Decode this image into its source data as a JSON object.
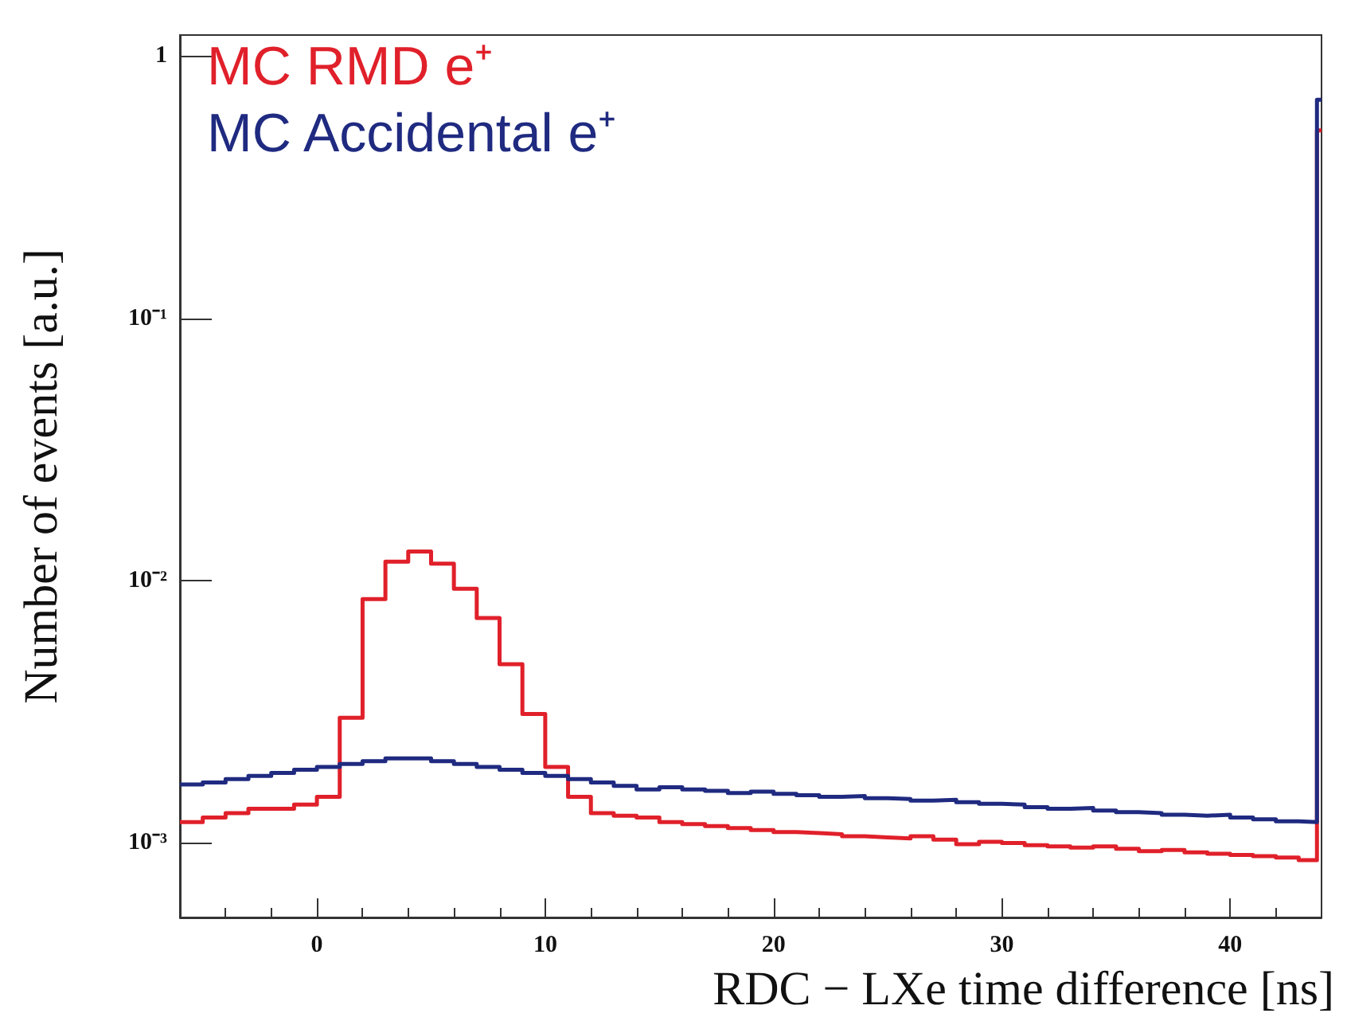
{
  "chart_data": {
    "type": "histogram",
    "xlabel": "RDC − LXe time difference [ns]",
    "ylabel": "Number of events [a.u.]",
    "log": "y",
    "legend": "top left",
    "xlim": [
      -6,
      44
    ],
    "xticks": [
      0,
      10,
      20,
      30,
      40
    ],
    "ylim": [
      0.00052,
      1.2
    ],
    "yticks": [
      {
        "value": 0.001,
        "label": "10⁻³"
      },
      {
        "value": 0.01,
        "label": "10⁻²"
      },
      {
        "value": 0.1,
        "label": "10⁻¹"
      },
      1
    ],
    "bins": [
      -6,
      -5,
      -4,
      -3,
      -2,
      -1,
      0,
      1,
      2,
      3,
      4,
      5,
      6,
      7,
      8,
      9,
      10,
      11,
      12,
      13,
      14,
      15,
      16,
      17,
      18,
      19,
      20,
      21,
      22,
      23,
      24,
      25,
      26,
      27,
      28,
      29,
      30,
      31,
      32,
      33,
      34,
      35,
      36,
      37,
      38,
      39,
      40,
      41,
      42,
      43,
      43.8,
      44
    ],
    "series": [
      {
        "name": "MC RMD e⁺",
        "color": "#e0202a",
        "values": [
          0.0012,
          0.00125,
          0.0013,
          0.00135,
          0.00135,
          0.0014,
          0.0015,
          0.003,
          0.0085,
          0.0118,
          0.0129,
          0.0116,
          0.0093,
          0.0072,
          0.0048,
          0.0031,
          0.00195,
          0.0015,
          0.0013,
          0.00127,
          0.00125,
          0.0012,
          0.00118,
          0.00116,
          0.00114,
          0.00112,
          0.0011,
          0.00109,
          0.00108,
          0.00106,
          0.00105,
          0.00104,
          0.00106,
          0.00103,
          0.00099,
          0.00101,
          0.001,
          0.00098,
          0.00097,
          0.00096,
          0.00097,
          0.00095,
          0.00093,
          0.00094,
          0.00092,
          0.00091,
          0.0009,
          0.00089,
          0.00088,
          0.00086,
          0.52
        ]
      },
      {
        "name": "MC Accidental e⁺",
        "color": "#1f2a80",
        "values": [
          0.00167,
          0.0017,
          0.00175,
          0.0018,
          0.00185,
          0.0019,
          0.00195,
          0.002,
          0.00205,
          0.0021,
          0.0021,
          0.00205,
          0.002,
          0.00195,
          0.0019,
          0.00185,
          0.0018,
          0.00175,
          0.0017,
          0.00165,
          0.0016,
          0.00163,
          0.0016,
          0.00158,
          0.00155,
          0.00157,
          0.00154,
          0.00152,
          0.0015,
          0.00151,
          0.00148,
          0.00147,
          0.00145,
          0.00146,
          0.00143,
          0.00141,
          0.0014,
          0.00137,
          0.00135,
          0.00136,
          0.00133,
          0.00131,
          0.0013,
          0.00128,
          0.00127,
          0.00128,
          0.00125,
          0.00123,
          0.00121,
          0.0012,
          0.68
        ]
      }
    ]
  }
}
